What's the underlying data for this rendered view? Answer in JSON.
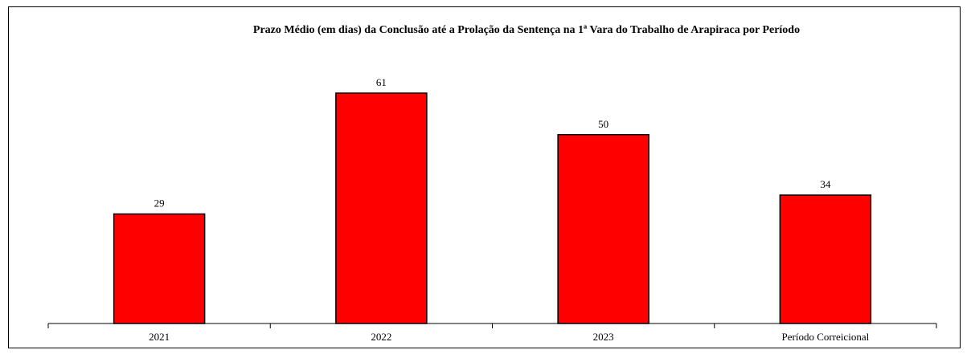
{
  "chart_data": {
    "type": "bar",
    "title": "Prazo Médio (em dias) da Conclusão até a Prolação da Sentença na 1ª Vara do Trabalho de Arapiraca por Período",
    "categories": [
      "2021",
      "2022",
      "2023",
      "Período Correicional"
    ],
    "values": [
      29,
      61,
      50,
      34
    ],
    "data_labels": [
      "29",
      "61",
      "50",
      "34"
    ],
    "ylim": [
      0,
      61
    ],
    "colors": {
      "bar": "#ff0000",
      "outline": "#000000"
    },
    "grid": false,
    "legend": "none",
    "xlabel": "",
    "ylabel": ""
  }
}
